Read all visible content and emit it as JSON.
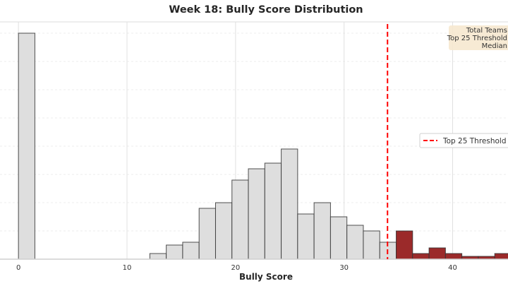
{
  "chart_data": {
    "type": "bar",
    "title": "Week 18: Bully Score Distribution",
    "xlabel": "Bully Score",
    "ylabel": "",
    "xlim": [
      -1.7,
      45.1
    ],
    "ylim": [
      0,
      84
    ],
    "x_ticks": [
      0,
      10,
      20,
      30,
      40
    ],
    "y_gridlines": [
      10,
      20,
      30,
      40,
      50,
      60,
      70,
      80
    ],
    "grid": true,
    "bin_width": 1.513,
    "bins": [
      {
        "start_bin": 0,
        "count": 80
      },
      {
        "start_bin": 8,
        "count": 2
      },
      {
        "start_bin": 9,
        "count": 5
      },
      {
        "start_bin": 10,
        "count": 6
      },
      {
        "start_bin": 11,
        "count": 18
      },
      {
        "start_bin": 12,
        "count": 20
      },
      {
        "start_bin": 13,
        "count": 28
      },
      {
        "start_bin": 14,
        "count": 32
      },
      {
        "start_bin": 15,
        "count": 34
      },
      {
        "start_bin": 16,
        "count": 39
      },
      {
        "start_bin": 17,
        "count": 16
      },
      {
        "start_bin": 18,
        "count": 20
      },
      {
        "start_bin": 19,
        "count": 15
      },
      {
        "start_bin": 20,
        "count": 12
      },
      {
        "start_bin": 21,
        "count": 10
      },
      {
        "start_bin": 22,
        "count": 6
      },
      {
        "start_bin": 23,
        "count": 10,
        "top25": true
      },
      {
        "start_bin": 24,
        "count": 2,
        "top25": true
      },
      {
        "start_bin": 25,
        "count": 4,
        "top25": true
      },
      {
        "start_bin": 26,
        "count": 2,
        "top25": true
      },
      {
        "start_bin": 27,
        "count": 1,
        "top25": true
      },
      {
        "start_bin": 28,
        "count": 1,
        "top25": true
      },
      {
        "start_bin": 29,
        "count": 2,
        "top25": true
      }
    ],
    "threshold": {
      "value": 34,
      "label": "Top 25 Threshold",
      "color": "#ff0000"
    },
    "legend": {
      "placement": "right",
      "entries": [
        "Top 25 Threshold"
      ]
    },
    "annotation_box": {
      "lines": [
        "Total Teams",
        "Top 25 Threshold",
        "Median"
      ]
    },
    "colors": {
      "bar": "#dedede",
      "top25_bar": "#9b2a2a",
      "annotation_bg": "#f6e8cf"
    }
  }
}
